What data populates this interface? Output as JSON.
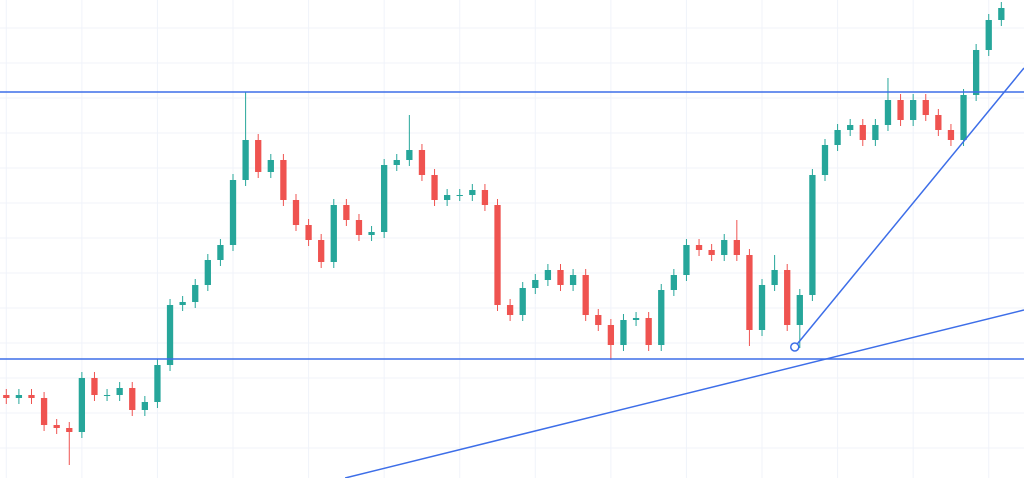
{
  "chart_data": {
    "type": "candlestick",
    "xlim": [
      -0.5,
      80.8
    ],
    "ylim": [
      0,
      478
    ],
    "grid": true,
    "yticks": [
      30,
      65,
      100,
      135,
      170,
      205,
      240,
      275,
      310,
      345,
      380,
      415,
      450
    ],
    "xticks": [
      0,
      6,
      12,
      18,
      24,
      30,
      36,
      42,
      48,
      54,
      60,
      66,
      72,
      78
    ],
    "up_color": "#26a69a",
    "down_color": "#ef5350",
    "line_color": "#3d6ee8",
    "grid_color": "#f0f3fa",
    "open": [
      83,
      80,
      83,
      80,
      53,
      50,
      46,
      100,
      83,
      83,
      90,
      68,
      76,
      113,
      173,
      176,
      193,
      218,
      233,
      298,
      338,
      306,
      318,
      278,
      253,
      238,
      216,
      273,
      258,
      243,
      246,
      313,
      318,
      328,
      303,
      278,
      283,
      283,
      288,
      273,
      173,
      163,
      190,
      198,
      208,
      193,
      203,
      163,
      153,
      133,
      158,
      160,
      133,
      188,
      203,
      233,
      228,
      223,
      238,
      223,
      148,
      193,
      208,
      153,
      183,
      303,
      333,
      348,
      353,
      338,
      353,
      378,
      358,
      378,
      363,
      348,
      338,
      383,
      428,
      458
    ],
    "high": [
      89,
      89,
      89,
      86,
      59,
      56,
      106,
      106,
      89,
      96,
      96,
      82,
      119,
      179,
      182,
      199,
      224,
      239,
      304,
      386,
      344,
      324,
      324,
      284,
      259,
      244,
      279,
      279,
      264,
      252,
      319,
      324,
      363,
      334,
      309,
      289,
      289,
      294,
      294,
      279,
      179,
      196,
      204,
      214,
      214,
      209,
      209,
      169,
      159,
      164,
      166,
      166,
      194,
      209,
      239,
      239,
      234,
      244,
      258,
      229,
      199,
      223,
      214,
      189,
      309,
      339,
      354,
      359,
      359,
      359,
      400,
      384,
      384,
      384,
      369,
      354,
      389,
      434,
      464,
      476
    ],
    "low": [
      74,
      74,
      74,
      47,
      44,
      13,
      40,
      77,
      77,
      77,
      62,
      62,
      70,
      107,
      167,
      170,
      187,
      212,
      227,
      292,
      300,
      300,
      272,
      247,
      232,
      210,
      210,
      252,
      237,
      237,
      240,
      307,
      312,
      297,
      272,
      272,
      277,
      277,
      267,
      167,
      157,
      157,
      184,
      192,
      187,
      187,
      157,
      147,
      118,
      127,
      152,
      127,
      127,
      182,
      197,
      222,
      217,
      217,
      217,
      132,
      142,
      187,
      147,
      130,
      177,
      297,
      327,
      342,
      332,
      332,
      347,
      352,
      352,
      357,
      342,
      332,
      332,
      377,
      422,
      452
    ],
    "close": [
      80,
      83,
      80,
      53,
      50,
      46,
      100,
      83,
      83,
      90,
      68,
      76,
      113,
      173,
      176,
      193,
      218,
      233,
      298,
      338,
      306,
      318,
      278,
      253,
      238,
      216,
      273,
      258,
      243,
      246,
      313,
      318,
      328,
      303,
      278,
      283,
      283,
      288,
      273,
      173,
      163,
      190,
      198,
      208,
      193,
      203,
      163,
      153,
      133,
      158,
      160,
      133,
      188,
      203,
      233,
      228,
      223,
      238,
      223,
      148,
      193,
      208,
      153,
      183,
      303,
      333,
      348,
      353,
      338,
      353,
      378,
      358,
      378,
      363,
      348,
      338,
      383,
      428,
      458,
      470
    ],
    "hlines": [
      386,
      119
    ],
    "trendlines": [
      {
        "x": [
          26.9,
          80.8
        ],
        "y": [
          0,
          168
        ]
      },
      {
        "x": [
          62.6,
          80.8
        ],
        "y": [
          131,
          410
        ]
      }
    ],
    "anchor": {
      "x": 62.6,
      "y": 131
    }
  }
}
